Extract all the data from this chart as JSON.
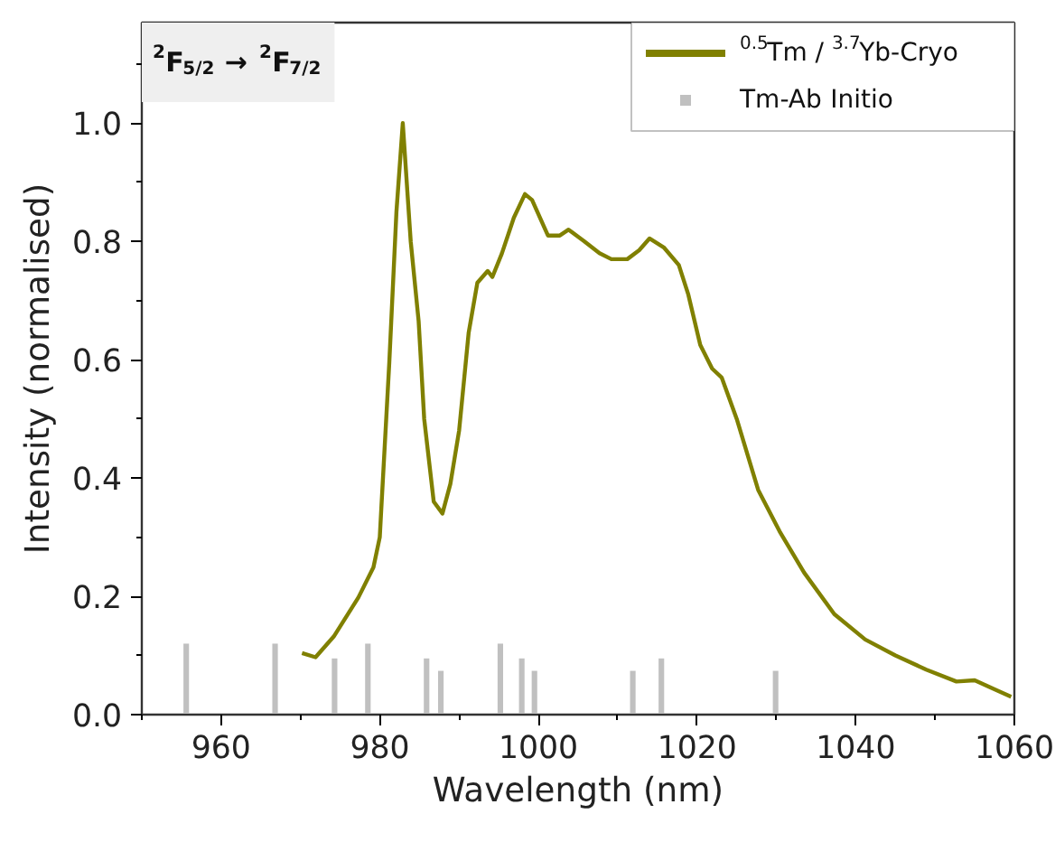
{
  "chart_data": {
    "type": "line",
    "xlabel": "Wavelength (nm)",
    "ylabel": "Intensity (normalised)",
    "annotations": [
      "$^{2}$F$_{5/2}$ → $^{2}$F$_{7/2}$"
    ],
    "xlim": [
      950,
      1060
    ],
    "xticks": [
      960,
      980,
      1000,
      1020,
      1040,
      1060
    ],
    "ylim": [
      0,
      1.17
    ],
    "yticks": [
      {
        "value": 0,
        "label": "0.0"
      },
      {
        "value": 0.2,
        "label": "0.2"
      },
      {
        "value": 0.4,
        "label": "0.4"
      },
      {
        "value": 0.6,
        "label": "0.6"
      },
      {
        "value": 0.8,
        "label": "0.8"
      },
      {
        "value": 1,
        "label": "1.0"
      }
    ],
    "grid": false,
    "legend": "top right",
    "series": [
      {
        "name": "$^{0.5}$Tm / $^{3.7}$Yb-Cryo",
        "color": "#808000",
        "x": [
          970.2,
          971.9,
          974.2,
          977.3,
          979.2,
          980.0,
          980.2,
          981.2,
          982.1,
          982.9,
          983.9,
          984.9,
          985.6,
          986.8,
          987.9,
          988.9,
          990.0,
          991.2,
          992.3,
          993.6,
          994.2,
          995.4,
          996.9,
          998.3,
          999.2,
          1001.2,
          1002.7,
          1003.8,
          1005.8,
          1007.7,
          1009.2,
          1011.2,
          1012.7,
          1014.0,
          1015.8,
          1017.7,
          1018.9,
          1020.4,
          1021.9,
          1023.1,
          1025.0,
          1027.7,
          1030.4,
          1033.5,
          1037.3,
          1041.2,
          1045.0,
          1048.9,
          1052.7,
          1055.0,
          1059.6
        ],
        "values": [
          0.104,
          0.097,
          0.132,
          0.198,
          0.249,
          0.3,
          0.35,
          0.595,
          0.85,
          1.0,
          0.8,
          0.665,
          0.5,
          0.36,
          0.34,
          0.39,
          0.48,
          0.645,
          0.73,
          0.75,
          0.74,
          0.78,
          0.84,
          0.88,
          0.87,
          0.81,
          0.81,
          0.82,
          0.8,
          0.78,
          0.77,
          0.77,
          0.785,
          0.805,
          0.79,
          0.76,
          0.71,
          0.625,
          0.585,
          0.57,
          0.5,
          0.38,
          0.31,
          0.24,
          0.17,
          0.127,
          0.1,
          0.076,
          0.056,
          0.058,
          0.03
        ]
      },
      {
        "name": "Tm-Ab Initio",
        "type": "bar",
        "color": "#c0c0c0",
        "x": [
          955.6,
          966.8,
          974.3,
          978.5,
          985.9,
          987.7,
          995.2,
          997.9,
          999.5,
          1011.9,
          1015.5,
          1029.9
        ],
        "values": [
          0.12,
          0.12,
          0.095,
          0.12,
          0.095,
          0.074,
          0.12,
          0.095,
          0.074,
          0.074,
          0.095,
          0.074
        ]
      }
    ]
  }
}
